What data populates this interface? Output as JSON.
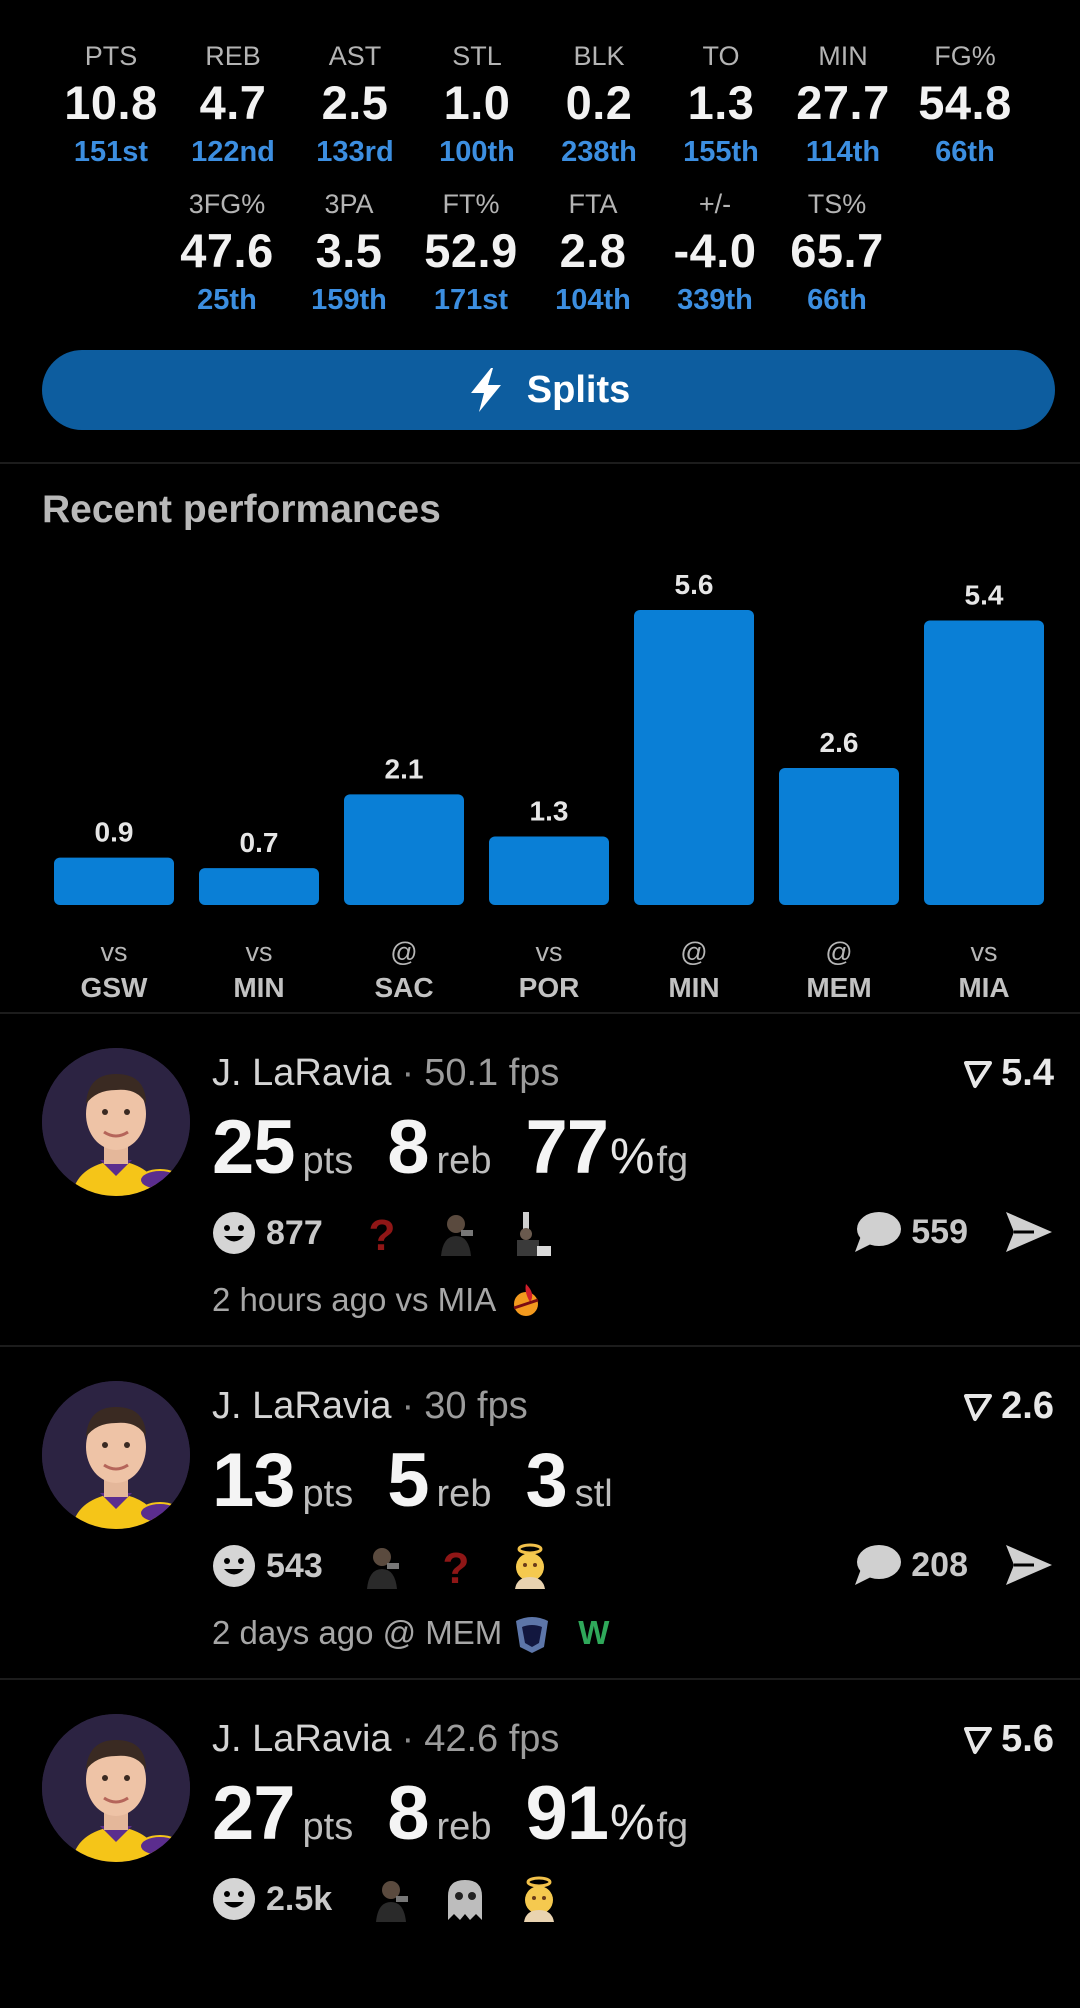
{
  "season_stats": {
    "row1": [
      {
        "label": "PTS",
        "value": "10.8",
        "rank": "151st"
      },
      {
        "label": "REB",
        "value": "4.7",
        "rank": "122nd"
      },
      {
        "label": "AST",
        "value": "2.5",
        "rank": "133rd"
      },
      {
        "label": "STL",
        "value": "1.0",
        "rank": "100th"
      },
      {
        "label": "BLK",
        "value": "0.2",
        "rank": "238th"
      },
      {
        "label": "TO",
        "value": "1.3",
        "rank": "155th"
      },
      {
        "label": "MIN",
        "value": "27.7",
        "rank": "114th"
      },
      {
        "label": "FG%",
        "value": "54.8",
        "rank": "66th"
      }
    ],
    "row2": [
      {
        "label": "3FG%",
        "value": "47.6",
        "rank": "25th"
      },
      {
        "label": "3PA",
        "value": "3.5",
        "rank": "159th"
      },
      {
        "label": "FT%",
        "value": "52.9",
        "rank": "171st"
      },
      {
        "label": "FTA",
        "value": "2.8",
        "rank": "104th"
      },
      {
        "label": "+/-",
        "value": "-4.0",
        "rank": "339th"
      },
      {
        "label": "TS%",
        "value": "65.7",
        "rank": "66th"
      }
    ]
  },
  "splits_button": {
    "label": "Splits",
    "icon": "lightning-bolt-icon"
  },
  "recent": {
    "title": "Recent performances"
  },
  "chart_data": {
    "type": "bar",
    "title": "Recent performances",
    "categories": [
      {
        "prefix": "vs",
        "team": "GSW"
      },
      {
        "prefix": "vs",
        "team": "MIN"
      },
      {
        "prefix": "@",
        "team": "SAC"
      },
      {
        "prefix": "vs",
        "team": "POR"
      },
      {
        "prefix": "@",
        "team": "MIN"
      },
      {
        "prefix": "@",
        "team": "MEM"
      },
      {
        "prefix": "vs",
        "team": "MIA"
      }
    ],
    "values": [
      0.9,
      0.7,
      2.1,
      1.3,
      5.6,
      2.6,
      5.4
    ],
    "ylim": [
      0,
      5.6
    ],
    "grid": false,
    "bar_color": "#0a7fd6"
  },
  "cards": [
    {
      "player": "J. LaRavia",
      "separator": "·",
      "fps": "50.1 fps",
      "score": "5.4",
      "stats": [
        {
          "value": "25",
          "unit": "pts"
        },
        {
          "value": "8",
          "unit": "reb"
        },
        {
          "value": "77",
          "pct": "%",
          "unit": "fg"
        }
      ],
      "reaction_count": "877",
      "emojis": [
        "question-mark-icon",
        "person-emoji-icon",
        "trophy-person-emoji-icon"
      ],
      "comment_count": "559",
      "time": "2 hours ago vs MIA",
      "team_logo": "heat-logo-icon",
      "result": ""
    },
    {
      "player": "J. LaRavia",
      "separator": "·",
      "fps": "30 fps",
      "score": "2.6",
      "stats": [
        {
          "value": "13",
          "unit": "pts"
        },
        {
          "value": "5",
          "unit": "reb"
        },
        {
          "value": "3",
          "unit": "stl"
        }
      ],
      "reaction_count": "543",
      "emojis": [
        "person-emoji-icon",
        "question-mark-icon",
        "angel-emoji-icon"
      ],
      "comment_count": "208",
      "time": "2 days ago @ MEM",
      "team_logo": "grizzlies-logo-icon",
      "result": "W"
    },
    {
      "player": "J. LaRavia",
      "separator": "·",
      "fps": "42.6 fps",
      "score": "5.6",
      "stats": [
        {
          "value": "27",
          "unit": "pts"
        },
        {
          "value": "8",
          "unit": "reb"
        },
        {
          "value": "91",
          "pct": "%",
          "unit": "fg"
        }
      ],
      "reaction_count": "2.5k",
      "emojis": [
        "person-emoji-icon",
        "ghost-emoji-icon",
        "angel-emoji-icon"
      ],
      "comment_count": "",
      "time": "",
      "team_logo": "",
      "result": ""
    }
  ],
  "colors": {
    "rank_blue": "#3c8ee0",
    "button_blue": "#0d5d9f",
    "win_green": "#2fa85a",
    "question_red": "#8f1616"
  }
}
